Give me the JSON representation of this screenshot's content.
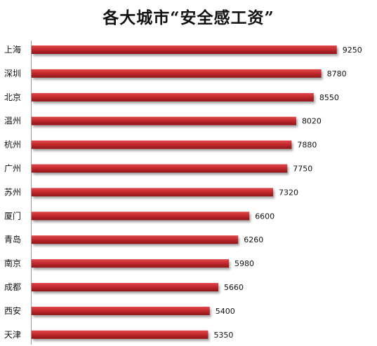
{
  "chart_data": {
    "type": "bar",
    "orientation": "horizontal",
    "title": "各大城市“安全感工资”",
    "categories": [
      "上海",
      "深圳",
      "北京",
      "温州",
      "杭州",
      "广州",
      "苏州",
      "厦门",
      "青岛",
      "南京",
      "成都",
      "西安",
      "天津"
    ],
    "values": [
      9250,
      8780,
      8550,
      8020,
      7880,
      7750,
      7320,
      6600,
      6260,
      5980,
      5660,
      5400,
      5350
    ],
    "xlim": [
      0,
      10000
    ],
    "grid": false,
    "data_labels": true,
    "bar_color": "#c0282d"
  }
}
